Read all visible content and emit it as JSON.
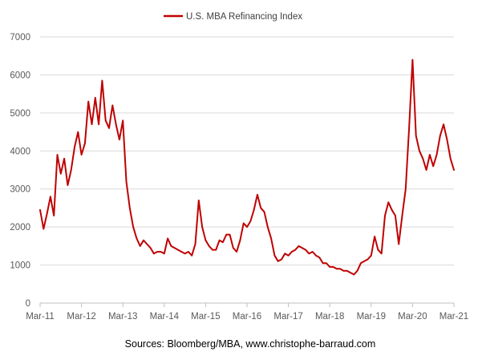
{
  "chart_data": {
    "type": "line",
    "title": "",
    "xlabel": "",
    "ylabel": "",
    "source": "Sources: Bloomberg/MBA, www.christophe-barraud.com",
    "legend": {
      "position": "top-center",
      "entries": [
        "U.S. MBA Refinancing Index"
      ]
    },
    "grid": {
      "horizontal": true,
      "vertical": false
    },
    "ylim": [
      0,
      7000
    ],
    "yticks": [
      "0",
      "1000",
      "2000",
      "3000",
      "4000",
      "5000",
      "6000",
      "7000"
    ],
    "xlim": [
      "2011-03",
      "2021-03"
    ],
    "xticks": [
      "Mar-11",
      "Mar-12",
      "Mar-13",
      "Mar-14",
      "Mar-15",
      "Mar-16",
      "Mar-17",
      "Mar-18",
      "Mar-19",
      "Mar-20",
      "Mar-21"
    ],
    "series": [
      {
        "name": "U.S. MBA Refinancing Index",
        "color": "#c00000",
        "x": [
          "2011-03",
          "2011-04",
          "2011-05",
          "2011-06",
          "2011-07",
          "2011-08",
          "2011-09",
          "2011-10",
          "2011-11",
          "2011-12",
          "2012-01",
          "2012-02",
          "2012-03",
          "2012-04",
          "2012-05",
          "2012-06",
          "2012-07",
          "2012-08",
          "2012-09",
          "2012-10",
          "2012-11",
          "2012-12",
          "2013-01",
          "2013-02",
          "2013-03",
          "2013-04",
          "2013-05",
          "2013-06",
          "2013-07",
          "2013-08",
          "2013-09",
          "2013-10",
          "2013-11",
          "2013-12",
          "2014-01",
          "2014-02",
          "2014-03",
          "2014-04",
          "2014-05",
          "2014-06",
          "2014-07",
          "2014-08",
          "2014-09",
          "2014-10",
          "2014-11",
          "2014-12",
          "2015-01",
          "2015-02",
          "2015-03",
          "2015-04",
          "2015-05",
          "2015-06",
          "2015-07",
          "2015-08",
          "2015-09",
          "2015-10",
          "2015-11",
          "2015-12",
          "2016-01",
          "2016-02",
          "2016-03",
          "2016-04",
          "2016-05",
          "2016-06",
          "2016-07",
          "2016-08",
          "2016-09",
          "2016-10",
          "2016-11",
          "2016-12",
          "2017-01",
          "2017-02",
          "2017-03",
          "2017-04",
          "2017-05",
          "2017-06",
          "2017-07",
          "2017-08",
          "2017-09",
          "2017-10",
          "2017-11",
          "2017-12",
          "2018-01",
          "2018-02",
          "2018-03",
          "2018-04",
          "2018-05",
          "2018-06",
          "2018-07",
          "2018-08",
          "2018-09",
          "2018-10",
          "2018-11",
          "2018-12",
          "2019-01",
          "2019-02",
          "2019-03",
          "2019-04",
          "2019-05",
          "2019-06",
          "2019-07",
          "2019-08",
          "2019-09",
          "2019-10",
          "2019-11",
          "2019-12",
          "2020-01",
          "2020-02",
          "2020-03",
          "2020-04",
          "2020-05",
          "2020-06",
          "2020-07",
          "2020-08",
          "2020-09",
          "2020-10",
          "2020-11",
          "2020-12",
          "2021-01",
          "2021-02",
          "2021-03"
        ],
        "values": [
          2450,
          1950,
          2350,
          2800,
          2300,
          3900,
          3400,
          3800,
          3100,
          3500,
          4100,
          4500,
          3900,
          4200,
          5300,
          4700,
          5400,
          4700,
          5850,
          4800,
          4600,
          5200,
          4700,
          4300,
          4800,
          3200,
          2500,
          2000,
          1700,
          1500,
          1650,
          1550,
          1450,
          1300,
          1350,
          1350,
          1300,
          1700,
          1500,
          1450,
          1400,
          1350,
          1300,
          1350,
          1250,
          1550,
          2700,
          2000,
          1650,
          1500,
          1400,
          1400,
          1650,
          1600,
          1800,
          1800,
          1450,
          1350,
          1650,
          2100,
          2000,
          2150,
          2450,
          2850,
          2500,
          2400,
          2000,
          1700,
          1250,
          1100,
          1150,
          1300,
          1250,
          1350,
          1400,
          1500,
          1450,
          1400,
          1300,
          1350,
          1250,
          1200,
          1050,
          1050,
          950,
          950,
          900,
          900,
          850,
          850,
          800,
          750,
          850,
          1050,
          1100,
          1150,
          1250,
          1750,
          1400,
          1300,
          2300,
          2650,
          2450,
          2300,
          1550,
          2300,
          3000,
          4600,
          6400,
          4400,
          4000,
          3800,
          3500,
          3900,
          3600,
          3900,
          4400,
          4700,
          4300,
          3800,
          3500
        ]
      }
    ]
  }
}
